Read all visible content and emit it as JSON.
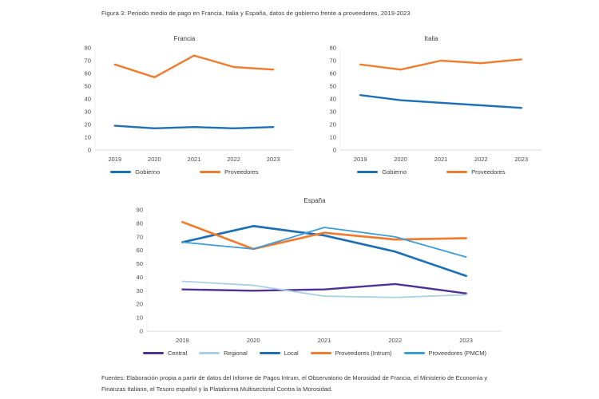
{
  "page": {
    "caption": "Figura 3: Periodo medio de pago en Francia, Italia y España, datos de gobierno frente a proveedores, 2019-2023",
    "source": "Fuentes: Elaboración propia a partir de datos del Informe de Pagos Intrum, el Observatorio de Morosidad de Francia, el Ministerio de Economía y Finanzas Italiano, el Tesoro español y la Plataforma Multisectorial Contra la Morosidad."
  },
  "colors": {
    "gobierno_blue": "#1F6FB5",
    "proveedores_orange": "#EE7D30",
    "central_purple": "#4E3397",
    "regional_light_blue": "#A9CFE5",
    "local_dark_blue": "#1F6FB5",
    "pmcm_medium_blue": "#3D9BD9",
    "axis_line_gray": "#D9D9D9",
    "tick_text_gray": "#4A4A4A"
  },
  "chart_data": [
    {
      "type": "line",
      "title": "Francia",
      "categories": [
        "2019",
        "2020",
        "2021",
        "2022",
        "2023"
      ],
      "xlabel": "",
      "ylabel": "",
      "ylim": [
        0,
        80
      ],
      "ytick_step": 10,
      "grid": false,
      "legend_position": "bottom",
      "series": [
        {
          "name": "Gobierno",
          "color": "#1F6FB5",
          "width": 2.4,
          "values": [
            19,
            17,
            18,
            17,
            18
          ]
        },
        {
          "name": "Proveedores",
          "color": "#EE7D30",
          "width": 2.4,
          "values": [
            67,
            57,
            74,
            65,
            63
          ]
        }
      ]
    },
    {
      "type": "line",
      "title": "Italia",
      "categories": [
        "2019",
        "2020",
        "2021",
        "2022",
        "2023"
      ],
      "xlabel": "",
      "ylabel": "",
      "ylim": [
        0,
        80
      ],
      "ytick_step": 10,
      "grid": false,
      "legend_position": "bottom",
      "series": [
        {
          "name": "Gobierno",
          "color": "#1F6FB5",
          "width": 2.4,
          "values": [
            43,
            39,
            37,
            35,
            33
          ]
        },
        {
          "name": "Proveedores",
          "color": "#EE7D30",
          "width": 2.4,
          "values": [
            67,
            63,
            70,
            68,
            71
          ]
        }
      ]
    },
    {
      "type": "line",
      "title": "España",
      "categories": [
        "2019",
        "2020",
        "2021",
        "2022",
        "2023"
      ],
      "xlabel": "",
      "ylabel": "",
      "ylim": [
        0,
        90
      ],
      "ytick_step": 10,
      "grid": false,
      "legend_position": "bottom",
      "series": [
        {
          "name": "Central",
          "color": "#4E3397",
          "width": 2.4,
          "values": [
            31,
            30,
            31,
            35,
            28
          ]
        },
        {
          "name": "Regional",
          "color": "#A9CFE5",
          "width": 1.8,
          "values": [
            37,
            34,
            26,
            25,
            27
          ]
        },
        {
          "name": "Local",
          "color": "#1F6FB5",
          "width": 2.7,
          "values": [
            66,
            78,
            71,
            59,
            41
          ]
        },
        {
          "name": "Proveedores (Intrum)",
          "color": "#EE7D30",
          "width": 2.7,
          "values": [
            81,
            61,
            73,
            68,
            69
          ]
        },
        {
          "name": "Proveedores (PMCM)",
          "color": "#3D9BD9",
          "width": 1.8,
          "values": [
            66,
            61,
            77,
            70,
            55
          ]
        }
      ]
    }
  ]
}
